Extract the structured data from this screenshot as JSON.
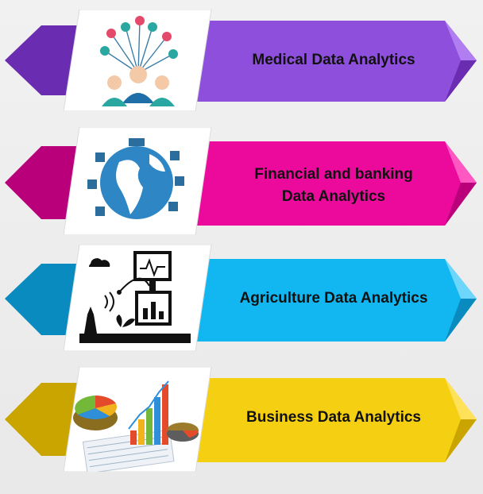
{
  "items": [
    {
      "label": "Medical Data Analytics",
      "color": "#8e4fdc",
      "dark": "#6a2cb0",
      "light": "#b07ef0",
      "icon": "medical-team-icon"
    },
    {
      "label": "Financial and banking Data Analytics",
      "label_line1": "Financial and banking",
      "label_line2": "Data Analytics",
      "color": "#ec0a9c",
      "dark": "#b9007a",
      "light": "#ff58c3",
      "icon": "globe-finance-icon"
    },
    {
      "label": "Agriculture Data Analytics",
      "color": "#12b7f2",
      "dark": "#0a8bc0",
      "light": "#6fd6fb",
      "icon": "agriculture-sensor-icon"
    },
    {
      "label": "Business Data Analytics",
      "color": "#f4cf12",
      "dark": "#caa500",
      "light": "#ffe25a",
      "icon": "business-charts-icon"
    }
  ]
}
